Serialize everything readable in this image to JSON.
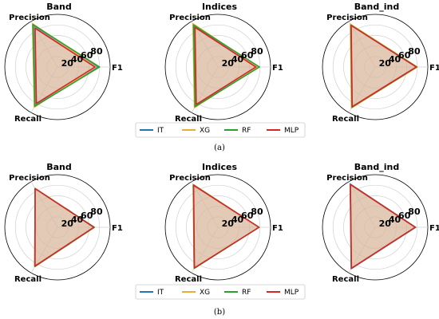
{
  "ticks": [
    "20",
    "40",
    "60",
    "80"
  ],
  "tick_values": [
    20,
    40,
    60,
    80
  ],
  "axes": [
    "Precision",
    "F1",
    "Recall"
  ],
  "series_names": [
    "IT",
    "XG",
    "RF",
    "MLP"
  ],
  "colors": {
    "IT": "#1f77b4",
    "XG": "#e5ae38",
    "RF": "#2ca02c",
    "MLP": "#d62728",
    "fill": "#d9b8a0",
    "grid": "#d0d0d0"
  },
  "captions": [
    "(a)",
    "(b)"
  ],
  "chart_data": [
    {
      "type": "radar",
      "title": "Band",
      "axes": [
        "Precision",
        "F1",
        "Recall"
      ],
      "rmax": 100,
      "series": [
        {
          "name": "IT",
          "values": [
            89,
            77,
            84
          ]
        },
        {
          "name": "XG",
          "values": [
            95,
            73,
            88
          ]
        },
        {
          "name": "RF",
          "values": [
            93,
            80,
            86
          ]
        },
        {
          "name": "MLP",
          "values": [
            85,
            71,
            80
          ]
        }
      ]
    },
    {
      "type": "radar",
      "title": "Indices",
      "axes": [
        "Precision",
        "F1",
        "Recall"
      ],
      "rmax": 100,
      "series": [
        {
          "name": "IT",
          "values": [
            91,
            74,
            85
          ]
        },
        {
          "name": "XG",
          "values": [
            95,
            76,
            89
          ]
        },
        {
          "name": "RF",
          "values": [
            92,
            79,
            87
          ]
        },
        {
          "name": "MLP",
          "values": [
            87,
            72,
            82
          ]
        }
      ]
    },
    {
      "type": "radar",
      "title": "Band_ind",
      "axes": [
        "Precision",
        "F1",
        "Recall"
      ],
      "rmax": 100,
      "series": [
        {
          "name": "IT",
          "values": [
            93,
            79,
            89
          ]
        },
        {
          "name": "XG",
          "values": [
            94,
            80,
            90
          ]
        },
        {
          "name": "RF",
          "values": [
            92,
            79,
            88
          ]
        },
        {
          "name": "MLP",
          "values": [
            91,
            78,
            87
          ]
        }
      ]
    },
    {
      "type": "radar",
      "title": "Band",
      "axes": [
        "Precision",
        "F1",
        "Recall"
      ],
      "rmax": 100,
      "series": [
        {
          "name": "IT",
          "values": [
            85,
            70,
            86
          ]
        },
        {
          "name": "XG",
          "values": [
            85,
            70,
            86
          ]
        },
        {
          "name": "RF",
          "values": [
            85,
            70,
            86
          ]
        },
        {
          "name": "MLP",
          "values": [
            85,
            69,
            85
          ]
        }
      ]
    },
    {
      "type": "radar",
      "title": "Indices",
      "axes": [
        "Precision",
        "F1",
        "Recall"
      ],
      "rmax": 100,
      "series": [
        {
          "name": "IT",
          "values": [
            93,
            78,
            90
          ]
        },
        {
          "name": "XG",
          "values": [
            94,
            78,
            90
          ]
        },
        {
          "name": "RF",
          "values": [
            93,
            78,
            90
          ]
        },
        {
          "name": "MLP",
          "values": [
            92,
            78,
            89
          ]
        }
      ]
    },
    {
      "type": "radar",
      "title": "Band_ind",
      "axes": [
        "Precision",
        "F1",
        "Recall"
      ],
      "rmax": 100,
      "series": [
        {
          "name": "IT",
          "values": [
            95,
            77,
            91
          ]
        },
        {
          "name": "XG",
          "values": [
            94,
            76,
            90
          ]
        },
        {
          "name": "RF",
          "values": [
            94,
            76,
            90
          ]
        },
        {
          "name": "MLP",
          "values": [
            94,
            76,
            90
          ]
        }
      ]
    }
  ]
}
